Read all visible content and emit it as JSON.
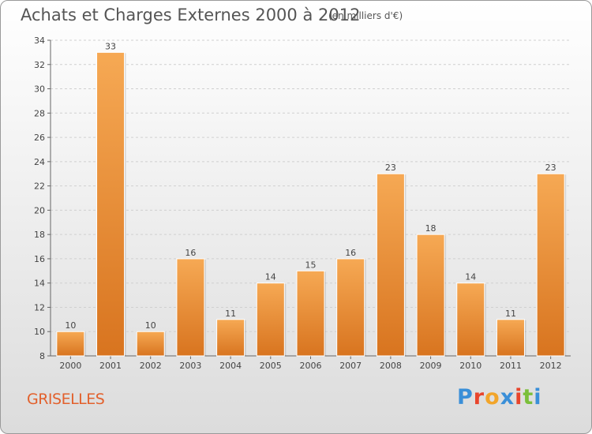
{
  "header": {
    "title": "Achats et Charges Externes 2000 à 2012",
    "subtitle": "(en milliers d'€)"
  },
  "footer": {
    "commune": "GRISELLES",
    "logo": "Proxiti",
    "logo_colors": [
      "#3a8fd8",
      "#e8452c",
      "#f2a52a",
      "#3a8fd8",
      "#e8452c",
      "#7bbf3a",
      "#3a8fd8"
    ]
  },
  "chart_data": {
    "type": "bar",
    "categories": [
      "2000",
      "2001",
      "2002",
      "2003",
      "2004",
      "2005",
      "2006",
      "2007",
      "2008",
      "2009",
      "2010",
      "2011",
      "2012"
    ],
    "values": [
      10,
      33,
      10,
      16,
      11,
      14,
      15,
      16,
      23,
      18,
      14,
      11,
      23
    ],
    "data_labels": [
      "10",
      "33",
      "10",
      "16",
      "11",
      "14",
      "15",
      "16",
      "23",
      "18",
      "14",
      "11",
      "23"
    ],
    "ylim": [
      8,
      34
    ],
    "yticks": [
      8,
      10,
      12,
      14,
      16,
      18,
      20,
      22,
      24,
      26,
      28,
      30,
      32,
      34
    ],
    "grid": true,
    "bar_color_light": "#f6a954",
    "bar_color_dark": "#d8741f"
  }
}
